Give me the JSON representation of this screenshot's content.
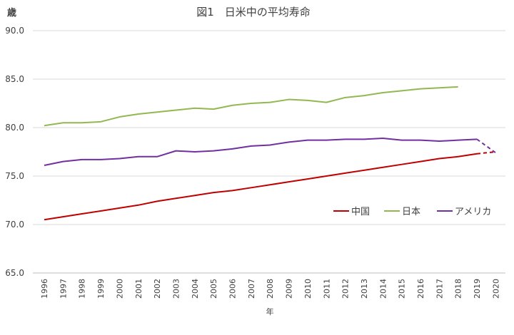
{
  "chart_data": {
    "type": "line",
    "title": "図1　日米中の平均寿命",
    "ylabel": "歳",
    "xlabel": "年",
    "ylim": [
      65,
      90
    ],
    "yticks": [
      "65.0",
      "70.0",
      "75.0",
      "80.0",
      "85.0",
      "90.0"
    ],
    "ytick_values": [
      65,
      70,
      75,
      80,
      85,
      90
    ],
    "categories": [
      "1996",
      "1997",
      "1998",
      "1999",
      "2000",
      "2001",
      "2002",
      "2003",
      "2004",
      "2005",
      "2006",
      "2007",
      "2008",
      "2009",
      "2010",
      "2011",
      "2012",
      "2013",
      "2014",
      "2015",
      "2016",
      "2017",
      "2018",
      "2019",
      "2020"
    ],
    "grid": true,
    "legend_position": "right-middle",
    "series": [
      {
        "name": "中国",
        "color": "#c00000",
        "values": [
          70.5,
          70.8,
          71.1,
          71.4,
          71.7,
          72.0,
          72.4,
          72.7,
          73.0,
          73.3,
          73.5,
          73.8,
          74.1,
          74.4,
          74.7,
          75.0,
          75.3,
          75.6,
          75.9,
          76.2,
          76.5,
          76.8,
          77.0,
          77.3,
          null
        ],
        "dashed_tail": [
          77.3,
          77.5
        ]
      },
      {
        "name": "日本",
        "color": "#92b851",
        "values": [
          80.2,
          80.5,
          80.5,
          80.6,
          81.1,
          81.4,
          81.6,
          81.8,
          82.0,
          81.9,
          82.3,
          82.5,
          82.6,
          82.9,
          82.8,
          82.6,
          83.1,
          83.3,
          83.6,
          83.8,
          84.0,
          84.1,
          84.2,
          null,
          null
        ]
      },
      {
        "name": "アメリカ",
        "color": "#7030a0",
        "values": [
          76.1,
          76.5,
          76.7,
          76.7,
          76.8,
          77.0,
          77.0,
          77.6,
          77.5,
          77.6,
          77.8,
          78.1,
          78.2,
          78.5,
          78.7,
          78.7,
          78.8,
          78.8,
          78.9,
          78.7,
          78.7,
          78.6,
          78.7,
          78.8,
          null
        ],
        "dashed_tail": [
          78.8,
          77.4
        ]
      }
    ]
  }
}
